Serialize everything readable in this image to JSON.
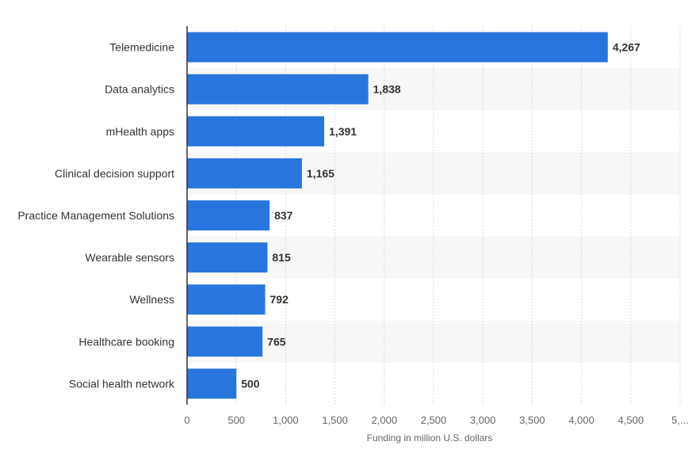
{
  "chart_data": {
    "type": "bar",
    "orientation": "horizontal",
    "categories": [
      "Telemedicine",
      "Data analytics",
      "mHealth apps",
      "Clinical decision support",
      "Practice Management Solutions",
      "Wearable sensors",
      "Wellness",
      "Healthcare booking",
      "Social health network"
    ],
    "values": [
      4267,
      1838,
      1391,
      1165,
      837,
      815,
      792,
      765,
      500
    ],
    "value_labels": [
      "4,267",
      "1,838",
      "1,391",
      "1,165",
      "837",
      "815",
      "792",
      "765",
      "500"
    ],
    "xticks": [
      "0",
      "500",
      "1,000",
      "1,500",
      "2,000",
      "2,500",
      "3,000",
      "3,500",
      "4,000",
      "4,500",
      "5,..."
    ],
    "xtick_values": [
      0,
      500,
      1000,
      1500,
      2000,
      2500,
      3000,
      3500,
      4000,
      4500,
      5000
    ],
    "xlabel": "Funding in million U.S. dollars",
    "xlim": [
      0,
      5000
    ],
    "grid": "vertical dashed",
    "bar_color": "#2876dd",
    "alt_row_color": "#f7f7f7"
  }
}
